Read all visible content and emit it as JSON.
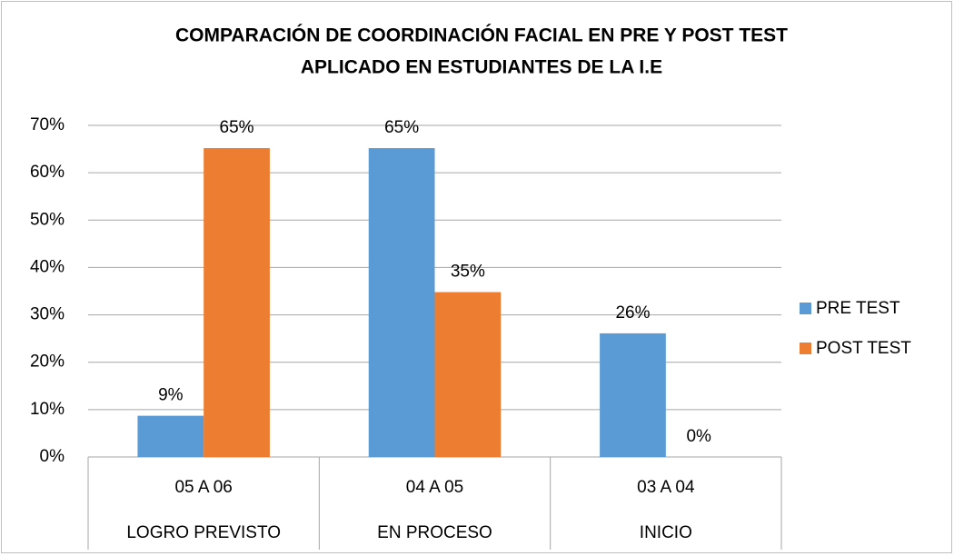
{
  "chart_data": {
    "type": "bar",
    "title": [
      "COMPARACIÓN DE COORDINACIÓN FACIAL EN PRE Y POST TEST",
      "APLICADO EN ESTUDIANTES DE LA I.E"
    ],
    "categories": [
      "05 A 06",
      "04 A 05",
      "03 A 04"
    ],
    "category_groups": [
      "LOGRO PREVISTO",
      "EN PROCESO",
      "INICIO"
    ],
    "series": [
      {
        "name": "PRE TEST",
        "color": "#5b9bd5",
        "values": [
          8.7,
          65.2,
          26.1
        ],
        "value_labels": [
          "9%",
          "65%",
          "26%"
        ]
      },
      {
        "name": "POST TEST",
        "color": "#ed7d31",
        "values": [
          65.2,
          34.8,
          0
        ],
        "value_labels": [
          "65%",
          "35%",
          "0%"
        ]
      }
    ],
    "ylim": [
      0,
      70
    ],
    "yticks": [
      {
        "value": 0,
        "label": "0%"
      },
      {
        "value": 10,
        "label": "10%"
      },
      {
        "value": 20,
        "label": "20%"
      },
      {
        "value": 30,
        "label": "30%"
      },
      {
        "value": 40,
        "label": "40%"
      },
      {
        "value": 50,
        "label": "50%"
      },
      {
        "value": 60,
        "label": "60%"
      },
      {
        "value": 70,
        "label": "70%"
      }
    ],
    "grid": true,
    "legend": "right"
  }
}
